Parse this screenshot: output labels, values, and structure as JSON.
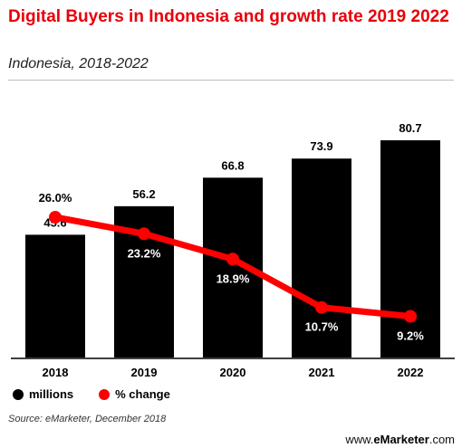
{
  "header": {
    "title": "Digital Buyers in Indonesia and growth rate 2019 2022",
    "subtitle": "Indonesia, 2018-2022"
  },
  "colors": {
    "title": "#e8000a",
    "bars": "#000000",
    "line": "#ff0000"
  },
  "chart_data": {
    "type": "bar",
    "categories": [
      "2018",
      "2019",
      "2020",
      "2021",
      "2022"
    ],
    "series": [
      {
        "name": "millions",
        "type": "bar",
        "values": [
          45.6,
          56.2,
          66.8,
          73.9,
          80.7
        ],
        "labels": [
          "45.6",
          "56.2",
          "66.8",
          "73.9",
          "80.7"
        ]
      },
      {
        "name": "% change",
        "type": "line",
        "values": [
          26.0,
          23.2,
          18.9,
          10.7,
          9.2
        ],
        "labels": [
          "26.0%",
          "23.2%",
          "18.9%",
          "10.7%",
          "9.2%"
        ]
      }
    ],
    "legend": "bottom-left",
    "grid": false
  },
  "footer": {
    "source": "Source: eMarketer, December 2018",
    "brand_prefix": "www.",
    "brand_name": "eMarketer",
    "brand_suffix": ".com"
  }
}
